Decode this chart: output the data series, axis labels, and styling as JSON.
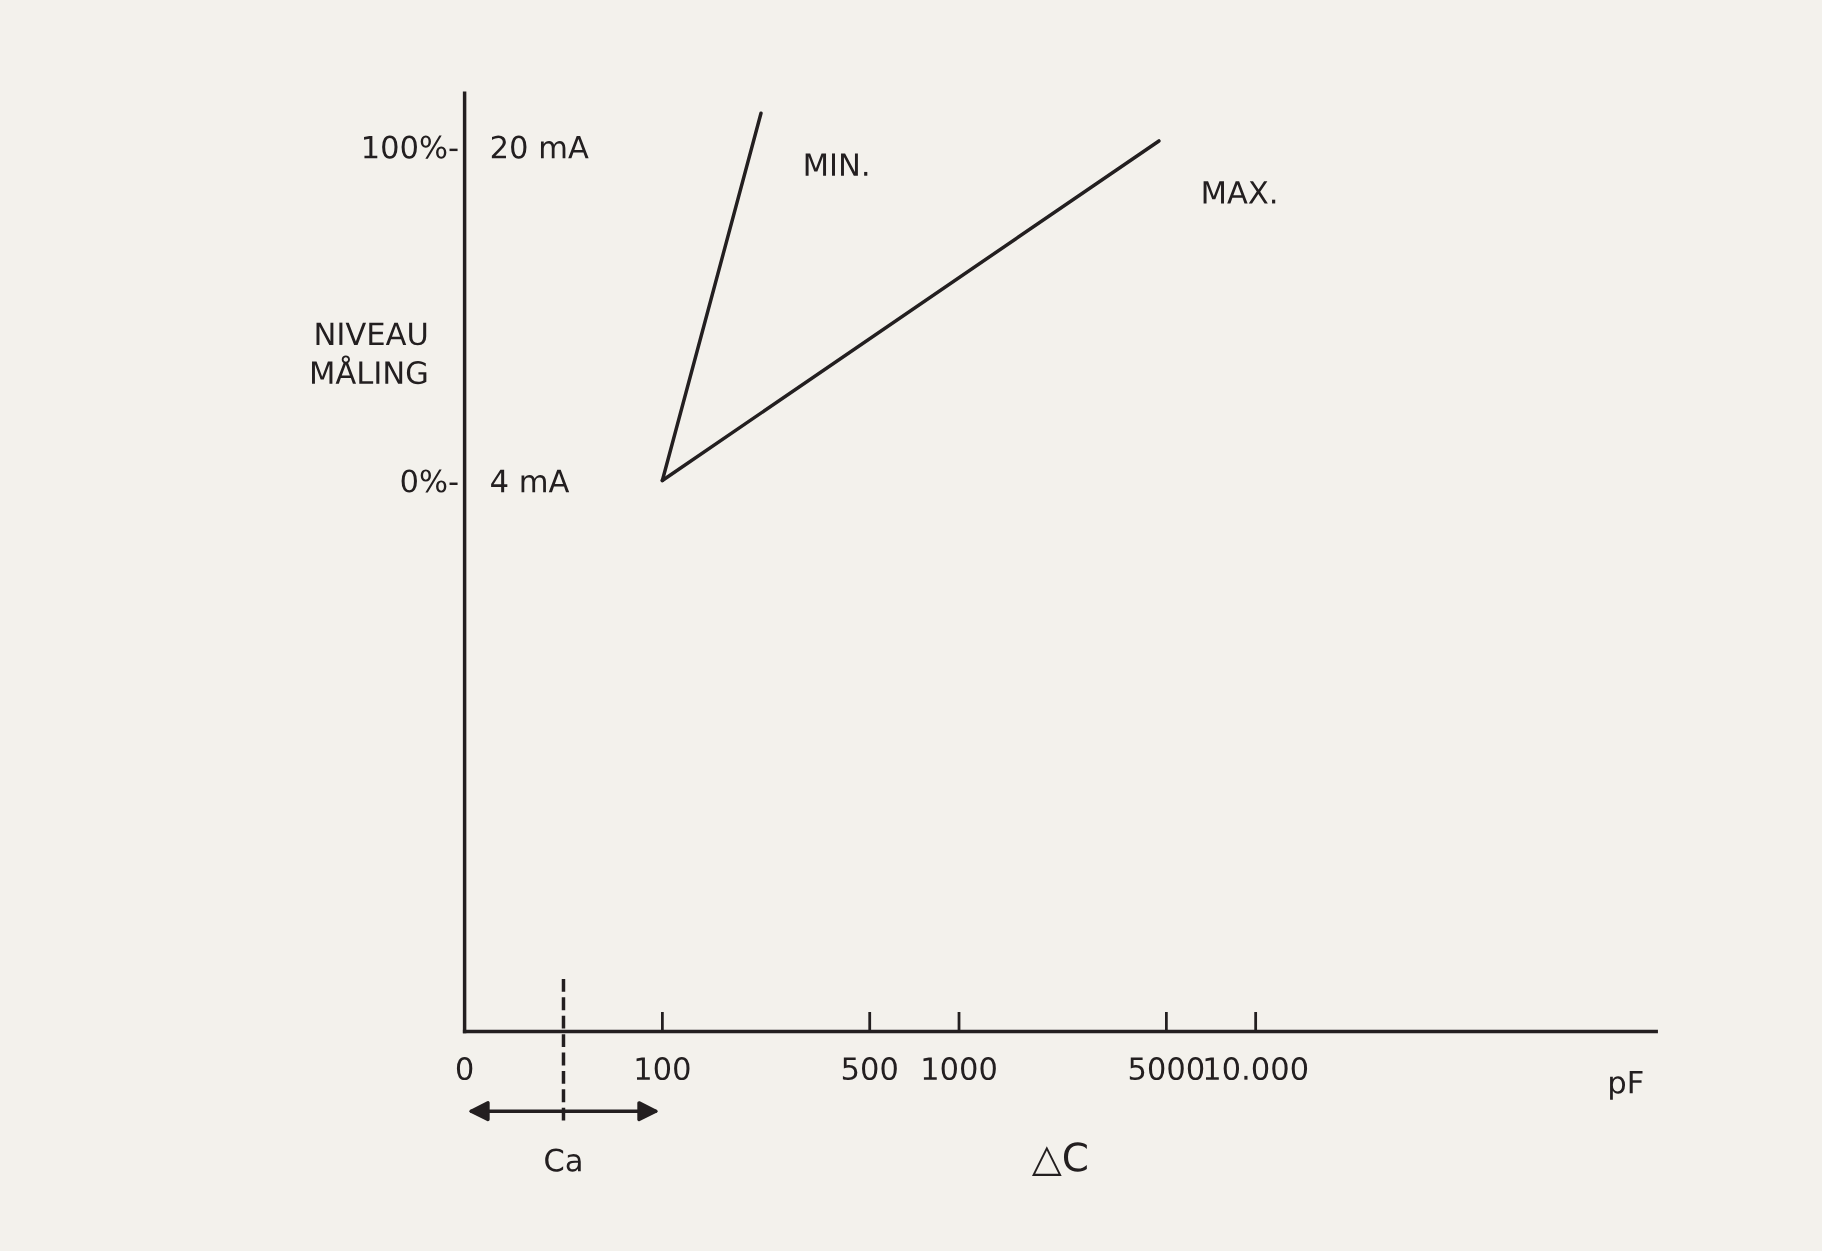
{
  "chart_data": {
    "type": "line",
    "xlabel": "△C",
    "ylabel": "NIVEAU\nMÅLING",
    "log": "x",
    "xlim": [
      0,
      224000
    ],
    "xticks": [
      0,
      100,
      500,
      1000,
      5000,
      {
        "value": 10000,
        "label": "10.000"
      }
    ],
    "ylim": [
      -165,
      116
    ],
    "yticks": [
      {
        "value": 0,
        "label": "0%-"
      },
      {
        "value": 100,
        "label": "100%-"
      }
    ],
    "y2lim": [
      -22.4,
      22.56
    ],
    "y2ticks": [
      {
        "value": 4,
        "label": "4 mA"
      },
      {
        "value": 20,
        "label": "20 mA"
      }
    ],
    "series": [
      {
        "name": "MIN.",
        "color": "#231f20",
        "x": [
          100,
          215
        ],
        "values": [
          0,
          110
        ]
      },
      {
        "name": "MAX.",
        "color": "#231f20",
        "x": [
          100,
          4720
        ],
        "values": [
          0,
          101.7
        ]
      }
    ],
    "annotations": [
      "pF",
      "Ca"
    ],
    "grid": false,
    "legend": false,
    "marker": "none",
    "line_style": "solid"
  }
}
